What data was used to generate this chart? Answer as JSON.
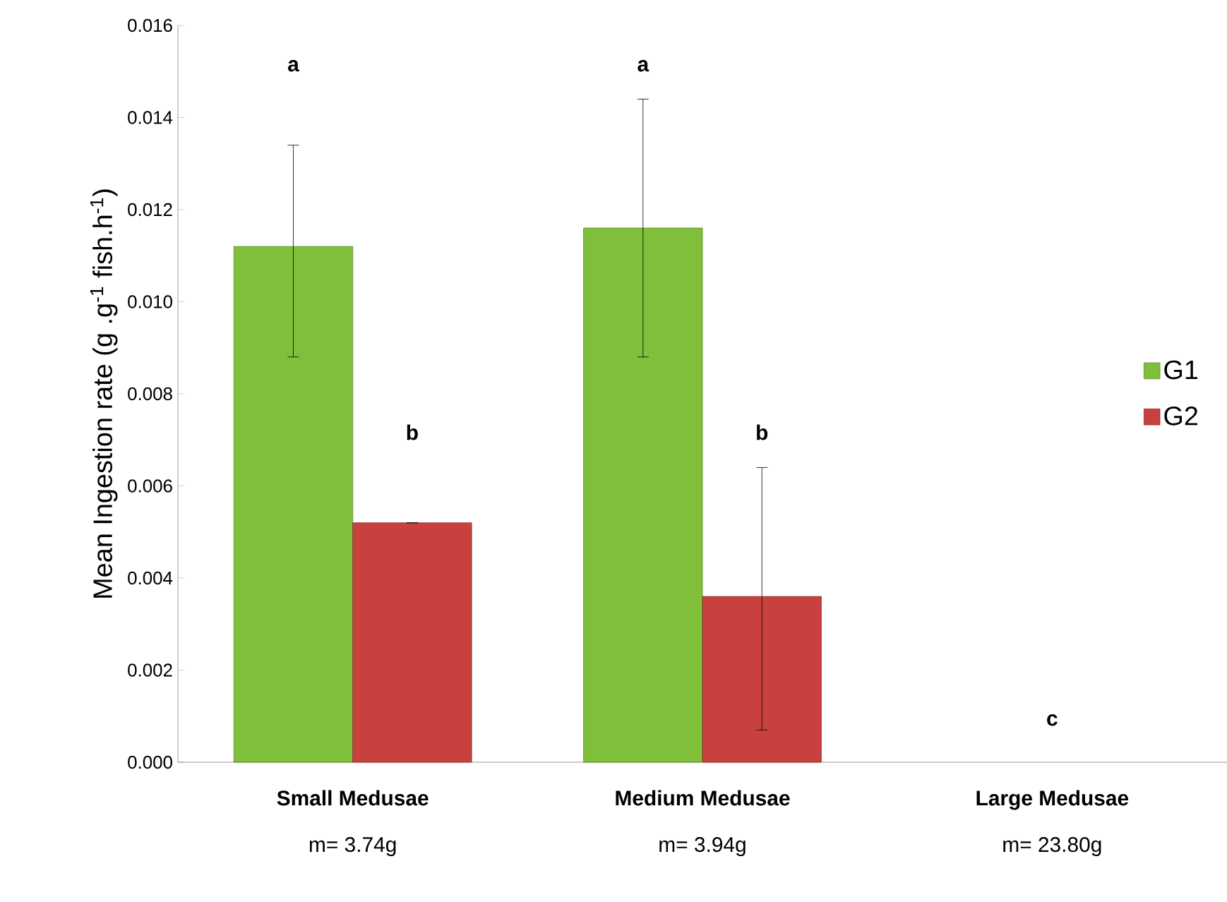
{
  "chart_data": {
    "type": "bar",
    "ylabel": "Mean Ingestion rate (g .g$^{-1}$ fish.h$^{-1}$)",
    "categories": [
      "Small Medusae",
      "Medium Medusae",
      "Large Medusae"
    ],
    "series": [
      {
        "name": "G1",
        "color": "#7fbf3a",
        "values": [
          0.0112,
          0.0116,
          null
        ],
        "errors": [
          [
            0.0088,
            0.0134
          ],
          [
            0.0088,
            0.0144
          ],
          null
        ]
      },
      {
        "name": "G2",
        "color": "#c8413e",
        "values": [
          0.0052,
          0.0036,
          null
        ],
        "errors": [
          0,
          [
            0.0007,
            0.0064
          ],
          null
        ]
      }
    ],
    "ylim": [
      0,
      0.016
    ],
    "yticks": [
      {
        "value": 0,
        "label": "0.000"
      },
      {
        "value": 0.002,
        "label": "0.002"
      },
      {
        "value": 0.004,
        "label": "0.004"
      },
      {
        "value": 0.006,
        "label": "0.006"
      },
      {
        "value": 0.008,
        "label": "0.008"
      },
      {
        "value": 0.01,
        "label": "0.010"
      },
      {
        "value": 0.012,
        "label": "0.012"
      },
      {
        "value": 0.014,
        "label": "0.014"
      },
      {
        "value": 0.016,
        "label": "0.016"
      }
    ],
    "annotations": [
      "a",
      "b",
      "a",
      "b",
      "c",
      "m= 3.74g",
      "m= 3.94g",
      "m= 23.80g"
    ],
    "legend": "right",
    "grid": false
  }
}
